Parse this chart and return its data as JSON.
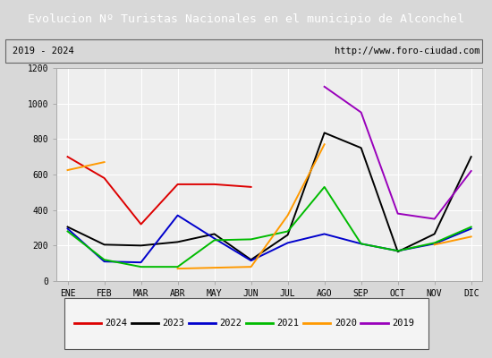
{
  "title": "Evolucion Nº Turistas Nacionales en el municipio de Alconchel",
  "subtitle_left": "2019 - 2024",
  "subtitle_right": "http://www.foro-ciudad.com",
  "title_bg_color": "#4e86c8",
  "title_text_color": "#ffffff",
  "months": [
    "ENE",
    "FEB",
    "MAR",
    "ABR",
    "MAY",
    "JUN",
    "JUL",
    "AGO",
    "SEP",
    "OCT",
    "NOV",
    "DIC"
  ],
  "ylim": [
    0,
    1200
  ],
  "yticks": [
    0,
    200,
    400,
    600,
    800,
    1000,
    1200
  ],
  "series": {
    "2024": {
      "color": "#dd0000",
      "values": [
        700,
        580,
        320,
        545,
        545,
        530,
        null,
        null,
        null,
        null,
        null,
        null
      ]
    },
    "2023": {
      "color": "#000000",
      "values": [
        305,
        205,
        200,
        220,
        265,
        120,
        260,
        835,
        750,
        165,
        265,
        700
      ]
    },
    "2022": {
      "color": "#0000cc",
      "values": [
        295,
        110,
        105,
        370,
        240,
        115,
        215,
        265,
        210,
        170,
        210,
        295
      ]
    },
    "2021": {
      "color": "#00bb00",
      "values": [
        280,
        120,
        80,
        80,
        230,
        235,
        280,
        530,
        210,
        170,
        215,
        305
      ]
    },
    "2020": {
      "color": "#ff9900",
      "values": [
        625,
        670,
        null,
        70,
        75,
        80,
        370,
        770,
        null,
        null,
        205,
        250
      ]
    },
    "2019": {
      "color": "#9900bb",
      "values": [
        null,
        null,
        null,
        null,
        null,
        null,
        null,
        1095,
        950,
        380,
        350,
        620
      ]
    }
  },
  "legend_order": [
    "2024",
    "2023",
    "2022",
    "2021",
    "2020",
    "2019"
  ],
  "bg_color": "#d8d8d8",
  "plot_bg_color": "#eeeeee",
  "grid_color": "#ffffff",
  "subtitle_bg": "#d0d0d0"
}
